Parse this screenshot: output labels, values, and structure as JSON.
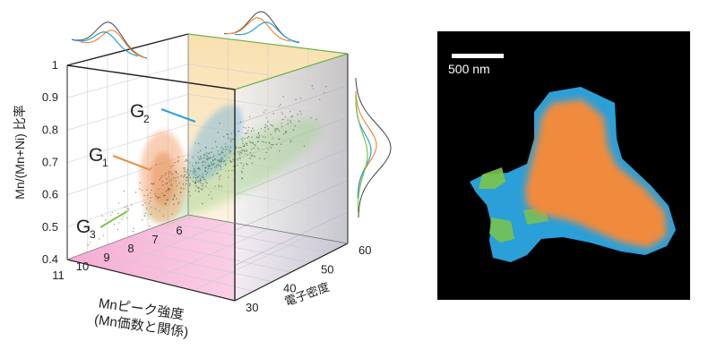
{
  "chart_data": [
    {
      "type": "scatter",
      "projection": "3d",
      "title": "",
      "xlabel": [
        "Mnピーク強度",
        "(Mn価数と関係)"
      ],
      "ylabel": "電子密度",
      "zlabel": "Mn/(Mn+Ni) 比率",
      "x_ticks": [
        "11",
        "10",
        "9",
        "8",
        "7",
        "6"
      ],
      "y_ticks": [
        "30",
        "40",
        "50",
        "60"
      ],
      "z_ticks": [
        "0.4",
        "0.5",
        "0.6",
        "0.7",
        "0.8",
        "0.9",
        "1"
      ],
      "xlim": [
        11,
        6
      ],
      "ylim": [
        30,
        60
      ],
      "zlim": [
        0.4,
        1
      ],
      "grid": true,
      "marginal_distributions": true,
      "clusters": [
        {
          "label": "G",
          "subscript": "1",
          "color": "#f08a3c",
          "center": {
            "mn_peak": 8.7,
            "density": 30,
            "ratio": 0.7
          }
        },
        {
          "label": "G",
          "subscript": "2",
          "color": "#2b9fd8",
          "center": {
            "mn_peak": 7.5,
            "density": 52,
            "ratio": 0.72
          }
        },
        {
          "label": "G",
          "subscript": "3",
          "color": "#7cc44a",
          "center": {
            "mn_peak": 8.5,
            "density": 35,
            "ratio": 0.63
          }
        }
      ],
      "colors": {
        "floor": "#f6b6d6",
        "side_wall": "#f6dcb0",
        "back_wall": "#c9ccd8"
      }
    },
    {
      "type": "image",
      "scale_bar": "500 nm",
      "colors": {
        "background": "#000000",
        "G1": "#f08a3c",
        "G2": "#2b9fd8",
        "G3": "#7cc44a"
      }
    }
  ]
}
